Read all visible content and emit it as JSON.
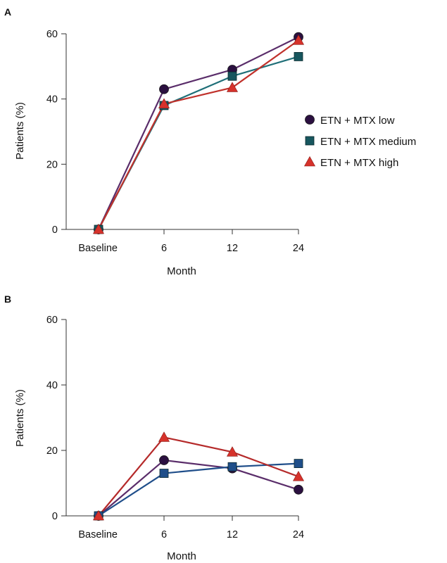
{
  "chart_data": [
    {
      "type": "line",
      "panel_label": "A",
      "categories": [
        "Baseline",
        "6",
        "12",
        "24"
      ],
      "series": [
        {
          "name": "ETN + MTX low",
          "values": [
            0,
            43,
            49,
            59
          ],
          "color": "#5a2d6a",
          "marker": "circle",
          "marker_fill": "#2b1040"
        },
        {
          "name": "ETN + MTX medium",
          "values": [
            0,
            38,
            47,
            53
          ],
          "color": "#1f6f78",
          "marker": "square",
          "marker_fill": "#17565e"
        },
        {
          "name": "ETN + MTX high",
          "values": [
            0,
            38.5,
            43.5,
            58
          ],
          "color": "#c0312b",
          "marker": "triangle",
          "marker_fill": "#d6322b"
        }
      ],
      "xlabel": "Month",
      "ylabel": "Patients (%)",
      "ylim": [
        0,
        60
      ],
      "yticks": [
        0,
        20,
        40,
        60
      ],
      "grid": false,
      "legend": "right"
    },
    {
      "type": "line",
      "panel_label": "B",
      "categories": [
        "Baseline",
        "6",
        "12",
        "24"
      ],
      "series": [
        {
          "name": "ETN + MTX low",
          "values": [
            0,
            17,
            14.5,
            8
          ],
          "color": "#5a2d6a",
          "marker": "circle",
          "marker_fill": "#2b1040"
        },
        {
          "name": "ETN + MTX medium",
          "values": [
            0,
            13,
            15,
            16
          ],
          "color": "#1f4e8a",
          "marker": "square",
          "marker_fill": "#1f4e8a"
        },
        {
          "name": "ETN + MTX high",
          "values": [
            0,
            24,
            19.5,
            12
          ],
          "color": "#b52a2a",
          "marker": "triangle",
          "marker_fill": "#d6322b"
        }
      ],
      "xlabel": "Month",
      "ylabel": "Patients (%)",
      "ylim": [
        0,
        60
      ],
      "yticks": [
        0,
        20,
        40,
        60
      ],
      "grid": false,
      "legend": "none"
    }
  ]
}
